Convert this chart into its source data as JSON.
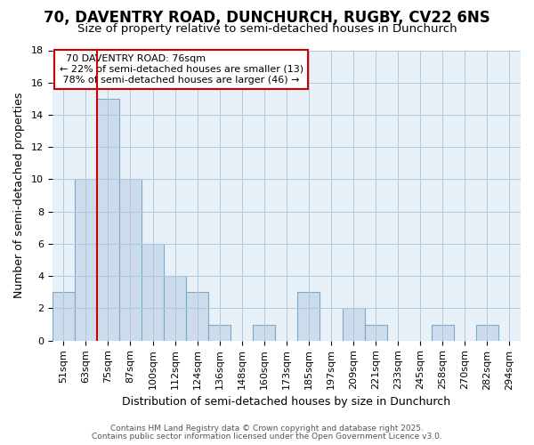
{
  "title": "70, DAVENTRY ROAD, DUNCHURCH, RUGBY, CV22 6NS",
  "subtitle": "Size of property relative to semi-detached houses in Dunchurch",
  "xlabel": "Distribution of semi-detached houses by size in Dunchurch",
  "ylabel": "Number of semi-detached properties",
  "categories": [
    "51sqm",
    "63sqm",
    "75sqm",
    "87sqm",
    "100sqm",
    "112sqm",
    "124sqm",
    "136sqm",
    "148sqm",
    "160sqm",
    "173sqm",
    "185sqm",
    "197sqm",
    "209sqm",
    "221sqm",
    "233sqm",
    "245sqm",
    "258sqm",
    "270sqm",
    "282sqm",
    "294sqm"
  ],
  "values": [
    3,
    10,
    15,
    10,
    6,
    4,
    3,
    1,
    0,
    1,
    0,
    3,
    0,
    2,
    1,
    0,
    0,
    1,
    0,
    1,
    0
  ],
  "bar_color": "#ccdcec",
  "bar_edge_color": "#7aaaca",
  "property_index": 2,
  "property_label": "70 DAVENTRY ROAD: 76sqm",
  "smaller_pct": "22%",
  "smaller_count": 13,
  "larger_pct": "78%",
  "larger_count": 46,
  "annotation_box_color": "#ffffff",
  "annotation_box_edge_color": "#cc0000",
  "vline_color": "#cc0000",
  "ylim": [
    0,
    18
  ],
  "yticks": [
    0,
    2,
    4,
    6,
    8,
    10,
    12,
    14,
    16,
    18
  ],
  "title_fontsize": 12,
  "subtitle_fontsize": 9.5,
  "axis_label_fontsize": 9,
  "tick_fontsize": 8,
  "annotation_fontsize": 8,
  "footer_line1": "Contains HM Land Registry data © Crown copyright and database right 2025.",
  "footer_line2": "Contains public sector information licensed under the Open Government Licence v3.0.",
  "bg_color": "#ffffff",
  "plot_bg_color": "#e8f0f8"
}
